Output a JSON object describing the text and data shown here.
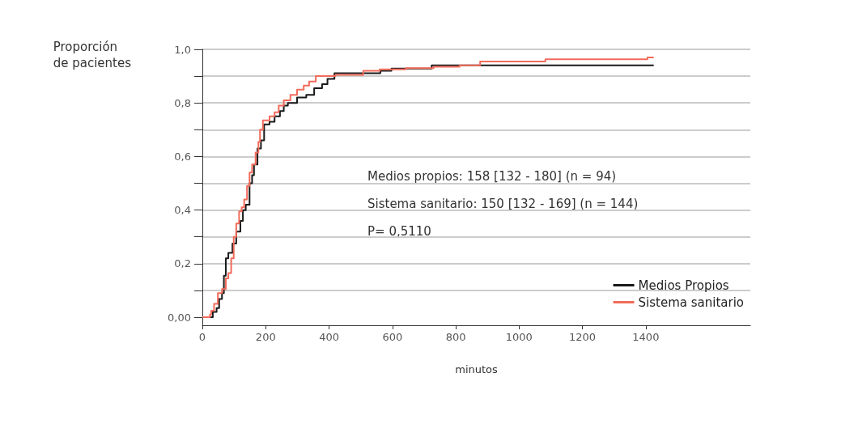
{
  "chart_data": {
    "type": "step",
    "xlabel": "minutos",
    "ylabel": "Proporción\nde pacientes",
    "annotations": [
      "Medios propios: 158 [132 - 180] (n = 94)",
      "Sistema sanitario: 150 [132 - 169] (n = 144)",
      "P= 0,5110"
    ],
    "xlim": [
      0,
      1730
    ],
    "xticks": [
      0,
      200,
      400,
      600,
      800,
      1000,
      1200,
      1400
    ],
    "ylim": [
      -0.03,
      1.0
    ],
    "yticks": [
      {
        "value": 0,
        "label": "0,00"
      },
      {
        "value": 0.1,
        "label": null
      },
      {
        "value": 0.2,
        "label": "0,2"
      },
      {
        "value": 0.3,
        "label": null
      },
      {
        "value": 0.4,
        "label": "0,4"
      },
      {
        "value": 0.5,
        "label": null
      },
      {
        "value": 0.6,
        "label": "0,6"
      },
      {
        "value": 0.7,
        "label": null
      },
      {
        "value": 0.8,
        "label": "0,8"
      },
      {
        "value": 0.9,
        "label": null
      },
      {
        "value": 1.0,
        "label": "1,0"
      }
    ],
    "grid": "y",
    "legend": "bottom right",
    "line_style": "solid",
    "marker": "none",
    "series": [
      {
        "name": "Medios Propios",
        "color": "#1a1a1a",
        "x": [
          0,
          28,
          33,
          45,
          53,
          62,
          68,
          74,
          82,
          95,
          107,
          120,
          128,
          137,
          149,
          157,
          163,
          174,
          185,
          195,
          212,
          228,
          245,
          257,
          270,
          299,
          328,
          353,
          378,
          395,
          417,
          460,
          562,
          597,
          724,
          1425
        ],
        "values": [
          0,
          0,
          0.02,
          0.034,
          0.068,
          0.09,
          0.155,
          0.22,
          0.24,
          0.275,
          0.32,
          0.36,
          0.4,
          0.42,
          0.5,
          0.53,
          0.57,
          0.63,
          0.66,
          0.72,
          0.73,
          0.75,
          0.77,
          0.79,
          0.8,
          0.82,
          0.83,
          0.855,
          0.87,
          0.89,
          0.911,
          0.911,
          0.92,
          0.928,
          0.94,
          0.94
        ]
      },
      {
        "name": "Sistema sanitario",
        "color": "#f26b5b",
        "x": [
          0,
          24,
          28,
          37,
          49,
          62,
          74,
          82,
          91,
          99,
          107,
          116,
          124,
          132,
          141,
          149,
          157,
          168,
          177,
          182,
          191,
          212,
          228,
          241,
          257,
          278,
          299,
          320,
          337,
          358,
          420,
          508,
          560,
          642,
          730,
          812,
          877,
          1083,
          1405,
          1425
        ],
        "values": [
          0,
          0.01,
          0.024,
          0.05,
          0.09,
          0.105,
          0.145,
          0.165,
          0.22,
          0.3,
          0.35,
          0.395,
          0.41,
          0.44,
          0.49,
          0.54,
          0.57,
          0.615,
          0.655,
          0.7,
          0.735,
          0.75,
          0.765,
          0.79,
          0.81,
          0.83,
          0.85,
          0.865,
          0.88,
          0.9,
          0.905,
          0.92,
          0.925,
          0.93,
          0.935,
          0.94,
          0.955,
          0.963,
          0.97,
          0.97
        ]
      }
    ]
  }
}
